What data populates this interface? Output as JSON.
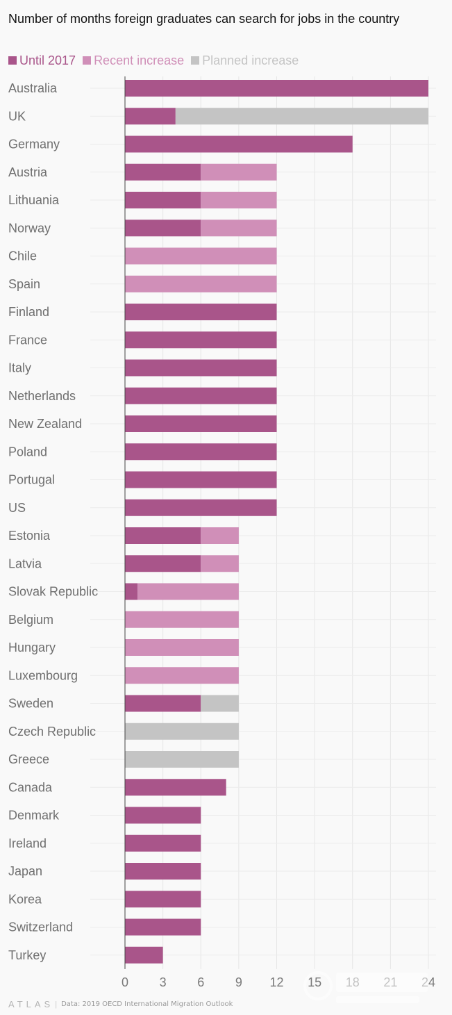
{
  "title": "Number of months foreign graduates can search for jobs in the country",
  "legend": [
    {
      "label": "Until 2017",
      "color": "#a9558a"
    },
    {
      "label": "Recent increase",
      "color": "#d08fb8"
    },
    {
      "label": "Planned increase",
      "color": "#c4c4c4"
    }
  ],
  "footer": {
    "logo": "ATLAS",
    "separator": "|",
    "source": "Data: 2019 OECD International Migration Outlook"
  },
  "chart_data": {
    "type": "bar",
    "orientation": "horizontal",
    "stacked": true,
    "xlim": [
      0,
      24
    ],
    "xticks": [
      0,
      3,
      6,
      9,
      12,
      15,
      18,
      21,
      24
    ],
    "grid": true,
    "legend_position": "top-left",
    "categories": [
      "Australia",
      "UK",
      "Germany",
      "Austria",
      "Lithuania",
      "Norway",
      "Chile",
      "Spain",
      "Finland",
      "France",
      "Italy",
      "Netherlands",
      "New Zealand",
      "Poland",
      "Portugal",
      "US",
      "Estonia",
      "Latvia",
      "Slovak Republic",
      "Belgium",
      "Hungary",
      "Luxembourg",
      "Sweden",
      "Czech Republic",
      "Greece",
      "Canada",
      "Denmark",
      "Ireland",
      "Japan",
      "Korea",
      "Switzerland",
      "Turkey"
    ],
    "series": [
      {
        "name": "Until 2017",
        "color": "#a9558a",
        "values": [
          24,
          4,
          18,
          6,
          6,
          6,
          0,
          0,
          12,
          12,
          12,
          12,
          12,
          12,
          12,
          12,
          6,
          6,
          1,
          0,
          0,
          0,
          6,
          0,
          0,
          8,
          6,
          6,
          6,
          6,
          6,
          3
        ]
      },
      {
        "name": "Recent increase",
        "color": "#d08fb8",
        "values": [
          0,
          0,
          0,
          6,
          6,
          6,
          12,
          12,
          0,
          0,
          0,
          0,
          0,
          0,
          0,
          0,
          3,
          3,
          8,
          9,
          9,
          9,
          0,
          0,
          0,
          0,
          0,
          0,
          0,
          0,
          0,
          0
        ]
      },
      {
        "name": "Planned increase",
        "color": "#c4c4c4",
        "values": [
          0,
          20,
          0,
          0,
          0,
          0,
          0,
          0,
          0,
          0,
          0,
          0,
          0,
          0,
          0,
          0,
          0,
          0,
          0,
          0,
          0,
          0,
          3,
          9,
          9,
          0,
          0,
          0,
          0,
          0,
          0,
          0
        ]
      }
    ]
  }
}
